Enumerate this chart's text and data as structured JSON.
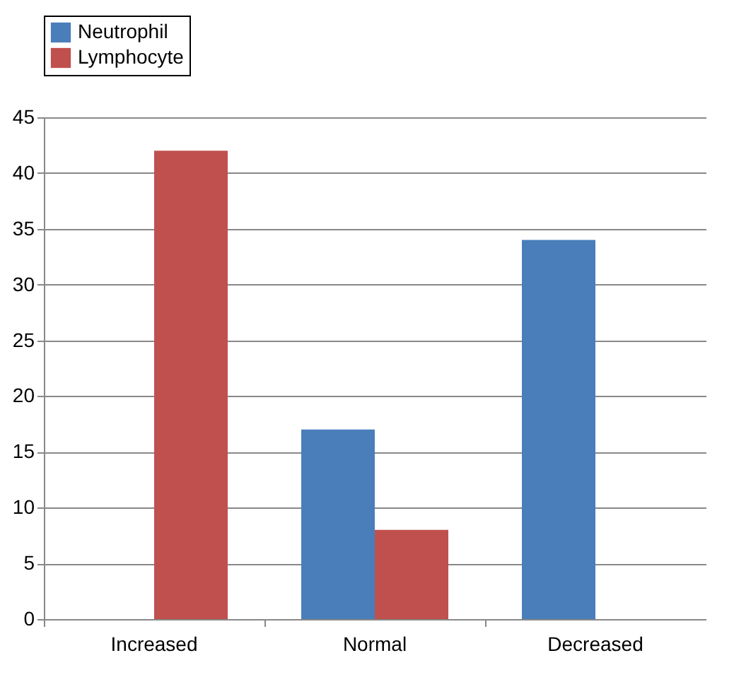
{
  "chart_data": {
    "type": "bar",
    "categories": [
      "Increased",
      "Normal",
      "Decreased"
    ],
    "series": [
      {
        "name": "Neutrophil",
        "color": "#4a7ebb",
        "values": [
          0,
          17,
          34
        ]
      },
      {
        "name": "Lymphocyte",
        "color": "#c0504d",
        "values": [
          42,
          8,
          0
        ]
      }
    ],
    "ylim": [
      0,
      45
    ],
    "yticks": [
      0,
      5,
      10,
      15,
      20,
      25,
      30,
      35,
      40,
      45
    ],
    "grid": "y",
    "legend": "top"
  }
}
